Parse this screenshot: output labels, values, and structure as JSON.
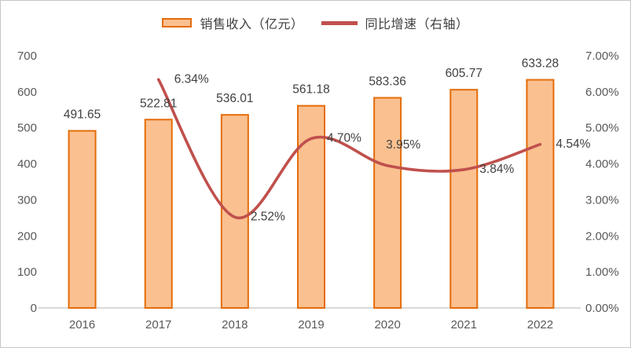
{
  "chart_data": {
    "type": "combo-bar-line",
    "categories": [
      "2016",
      "2017",
      "2018",
      "2019",
      "2020",
      "2021",
      "2022"
    ],
    "series": [
      {
        "name": "销售收入（亿元）",
        "type": "bar",
        "axis": "left",
        "values": [
          491.65,
          522.81,
          536.01,
          561.18,
          583.36,
          605.77,
          633.28
        ],
        "labels": [
          "491.65",
          "522.81",
          "536.01",
          "561.18",
          "583.36",
          "605.77",
          "633.28"
        ]
      },
      {
        "name": "同比增速（右轴）",
        "type": "line",
        "axis": "right",
        "smooth": true,
        "values": [
          null,
          6.34,
          2.52,
          4.7,
          3.95,
          3.84,
          4.54
        ],
        "labels": [
          null,
          "6.34%",
          "2.52%",
          "4.70%",
          "3.95%",
          "3.84%",
          "4.54%"
        ],
        "label_placement": [
          null,
          "right",
          "right",
          "right",
          "above",
          "right",
          "right"
        ]
      }
    ],
    "left_axis": {
      "min": 0,
      "max": 700,
      "step": 100,
      "tick_labels": [
        "0",
        "100",
        "200",
        "300",
        "400",
        "500",
        "600",
        "700"
      ]
    },
    "right_axis": {
      "min": 0,
      "max": 7,
      "step": 1,
      "tick_labels": [
        "0.00%",
        "1.00%",
        "2.00%",
        "3.00%",
        "4.00%",
        "5.00%",
        "6.00%",
        "7.00%"
      ]
    },
    "legend_position": "top-center",
    "grid": false,
    "title": "",
    "colors": {
      "bar_fill": "#FAC090",
      "bar_border": "#E46C0A",
      "line": "#C0504D",
      "axis_text": "#595959",
      "data_label_text": "#404040",
      "axis_line": "#D9D9D9"
    }
  }
}
